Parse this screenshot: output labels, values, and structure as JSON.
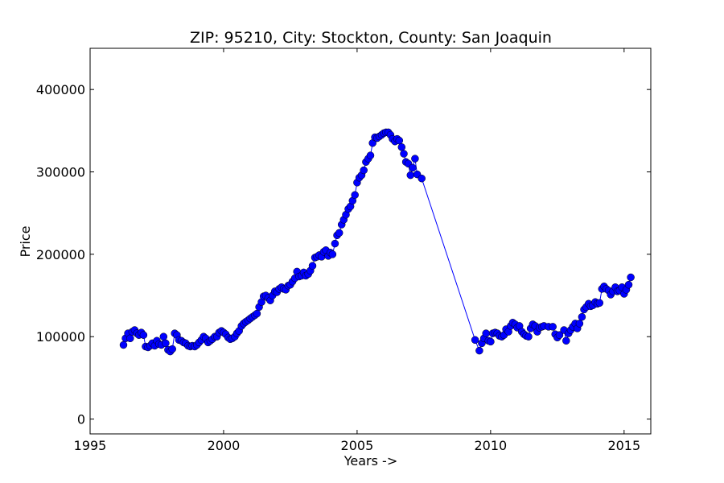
{
  "chart_data": {
    "type": "line",
    "title": "ZIP: 95210, City: Stockton, County: San Joaquin",
    "xlabel": "Years ->",
    "ylabel": "Price",
    "xlim": [
      1995,
      2016
    ],
    "ylim": [
      -18000,
      450000
    ],
    "xticks": [
      1995,
      2000,
      2005,
      2010,
      2015
    ],
    "yticks": [
      0,
      100000,
      200000,
      300000,
      400000
    ],
    "grid": false,
    "legend": "none",
    "colors": {
      "series": "#0000ff",
      "frame": "#000000"
    },
    "series": [
      {
        "marker": "circle",
        "points": [
          [
            1996.25,
            90000
          ],
          [
            1996.33,
            98000
          ],
          [
            1996.42,
            104000
          ],
          [
            1996.5,
            98000
          ],
          [
            1996.58,
            106000
          ],
          [
            1996.67,
            108000
          ],
          [
            1996.75,
            104000
          ],
          [
            1996.83,
            102000
          ],
          [
            1996.92,
            105000
          ],
          [
            1997.0,
            102000
          ],
          [
            1997.08,
            88000
          ],
          [
            1997.17,
            87000
          ],
          [
            1997.25,
            89000
          ],
          [
            1997.33,
            92000
          ],
          [
            1997.42,
            89000
          ],
          [
            1997.5,
            95000
          ],
          [
            1997.58,
            91000
          ],
          [
            1997.67,
            90000
          ],
          [
            1997.75,
            100000
          ],
          [
            1997.83,
            92000
          ],
          [
            1997.92,
            84000
          ],
          [
            1998.0,
            82000
          ],
          [
            1998.08,
            85000
          ],
          [
            1998.17,
            104000
          ],
          [
            1998.25,
            102000
          ],
          [
            1998.33,
            96000
          ],
          [
            1998.42,
            95000
          ],
          [
            1998.5,
            93000
          ],
          [
            1998.58,
            92000
          ],
          [
            1998.67,
            89000
          ],
          [
            1998.75,
            88000
          ],
          [
            1998.83,
            89000
          ],
          [
            1998.92,
            88000
          ],
          [
            1999.0,
            90000
          ],
          [
            1999.08,
            93000
          ],
          [
            1999.17,
            96000
          ],
          [
            1999.25,
            100000
          ],
          [
            1999.33,
            98000
          ],
          [
            1999.42,
            93000
          ],
          [
            1999.5,
            95000
          ],
          [
            1999.58,
            97000
          ],
          [
            1999.67,
            100000
          ],
          [
            1999.75,
            100000
          ],
          [
            1999.83,
            105000
          ],
          [
            1999.92,
            107000
          ],
          [
            2000.0,
            105000
          ],
          [
            2000.08,
            103000
          ],
          [
            2000.17,
            99000
          ],
          [
            2000.25,
            97000
          ],
          [
            2000.33,
            98000
          ],
          [
            2000.42,
            100000
          ],
          [
            2000.5,
            104000
          ],
          [
            2000.58,
            107000
          ],
          [
            2000.67,
            113000
          ],
          [
            2000.75,
            116000
          ],
          [
            2000.83,
            118000
          ],
          [
            2000.92,
            120000
          ],
          [
            2001.0,
            122000
          ],
          [
            2001.08,
            124000
          ],
          [
            2001.17,
            126000
          ],
          [
            2001.25,
            128000
          ],
          [
            2001.33,
            136000
          ],
          [
            2001.42,
            142000
          ],
          [
            2001.5,
            149000
          ],
          [
            2001.58,
            150000
          ],
          [
            2001.67,
            147000
          ],
          [
            2001.75,
            144000
          ],
          [
            2001.83,
            150000
          ],
          [
            2001.92,
            155000
          ],
          [
            2002.0,
            154000
          ],
          [
            2002.08,
            158000
          ],
          [
            2002.17,
            160000
          ],
          [
            2002.25,
            158000
          ],
          [
            2002.33,
            157000
          ],
          [
            2002.42,
            162000
          ],
          [
            2002.5,
            163000
          ],
          [
            2002.58,
            167000
          ],
          [
            2002.67,
            171000
          ],
          [
            2002.75,
            179000
          ],
          [
            2002.83,
            173000
          ],
          [
            2002.92,
            174000
          ],
          [
            2003.0,
            178000
          ],
          [
            2003.08,
            174000
          ],
          [
            2003.17,
            176000
          ],
          [
            2003.25,
            180000
          ],
          [
            2003.33,
            186000
          ],
          [
            2003.42,
            196000
          ],
          [
            2003.5,
            197000
          ],
          [
            2003.58,
            199000
          ],
          [
            2003.67,
            197000
          ],
          [
            2003.75,
            203000
          ],
          [
            2003.83,
            205000
          ],
          [
            2003.92,
            198000
          ],
          [
            2004.0,
            202000
          ],
          [
            2004.08,
            200000
          ],
          [
            2004.17,
            213000
          ],
          [
            2004.25,
            223000
          ],
          [
            2004.33,
            226000
          ],
          [
            2004.42,
            236000
          ],
          [
            2004.5,
            242000
          ],
          [
            2004.58,
            248000
          ],
          [
            2004.67,
            255000
          ],
          [
            2004.75,
            258000
          ],
          [
            2004.83,
            265000
          ],
          [
            2004.92,
            272000
          ],
          [
            2005.0,
            287000
          ],
          [
            2005.08,
            293000
          ],
          [
            2005.17,
            296000
          ],
          [
            2005.25,
            302000
          ],
          [
            2005.33,
            312000
          ],
          [
            2005.42,
            316000
          ],
          [
            2005.5,
            320000
          ],
          [
            2005.58,
            335000
          ],
          [
            2005.67,
            342000
          ],
          [
            2005.75,
            341000
          ],
          [
            2005.83,
            343000
          ],
          [
            2005.92,
            345000
          ],
          [
            2006.0,
            347000
          ],
          [
            2006.08,
            348000
          ],
          [
            2006.17,
            348000
          ],
          [
            2006.25,
            345000
          ],
          [
            2006.33,
            340000
          ],
          [
            2006.42,
            337000
          ],
          [
            2006.5,
            340000
          ],
          [
            2006.58,
            338000
          ],
          [
            2006.67,
            330000
          ],
          [
            2006.75,
            322000
          ],
          [
            2006.83,
            312000
          ],
          [
            2006.92,
            310000
          ],
          [
            2007.0,
            296000
          ],
          [
            2007.08,
            305000
          ],
          [
            2007.17,
            316000
          ],
          [
            2007.25,
            297000
          ],
          [
            2007.42,
            292000
          ],
          [
            2009.42,
            96000
          ],
          [
            2009.58,
            83000
          ],
          [
            2009.67,
            92000
          ],
          [
            2009.75,
            98000
          ],
          [
            2009.83,
            104000
          ],
          [
            2009.92,
            95000
          ],
          [
            2010.0,
            94000
          ],
          [
            2010.08,
            104000
          ],
          [
            2010.17,
            105000
          ],
          [
            2010.25,
            104000
          ],
          [
            2010.33,
            101000
          ],
          [
            2010.42,
            100000
          ],
          [
            2010.5,
            102000
          ],
          [
            2010.58,
            109000
          ],
          [
            2010.67,
            106000
          ],
          [
            2010.75,
            113000
          ],
          [
            2010.83,
            117000
          ],
          [
            2010.92,
            115000
          ],
          [
            2011.0,
            111000
          ],
          [
            2011.08,
            113000
          ],
          [
            2011.17,
            106000
          ],
          [
            2011.25,
            103000
          ],
          [
            2011.33,
            101000
          ],
          [
            2011.42,
            100000
          ],
          [
            2011.5,
            110000
          ],
          [
            2011.58,
            115000
          ],
          [
            2011.67,
            113000
          ],
          [
            2011.75,
            106000
          ],
          [
            2011.83,
            111000
          ],
          [
            2011.92,
            112000
          ],
          [
            2012.0,
            113000
          ],
          [
            2012.17,
            112000
          ],
          [
            2012.33,
            112000
          ],
          [
            2012.42,
            103000
          ],
          [
            2012.5,
            99000
          ],
          [
            2012.58,
            102000
          ],
          [
            2012.75,
            108000
          ],
          [
            2012.83,
            95000
          ],
          [
            2012.92,
            104000
          ],
          [
            2013.0,
            108000
          ],
          [
            2013.08,
            112000
          ],
          [
            2013.17,
            116000
          ],
          [
            2013.25,
            110000
          ],
          [
            2013.33,
            116000
          ],
          [
            2013.42,
            124000
          ],
          [
            2013.5,
            133000
          ],
          [
            2013.58,
            136000
          ],
          [
            2013.67,
            140000
          ],
          [
            2013.75,
            137000
          ],
          [
            2013.83,
            138000
          ],
          [
            2013.92,
            142000
          ],
          [
            2014.0,
            140000
          ],
          [
            2014.08,
            141000
          ],
          [
            2014.17,
            158000
          ],
          [
            2014.25,
            161000
          ],
          [
            2014.33,
            158000
          ],
          [
            2014.42,
            156000
          ],
          [
            2014.5,
            151000
          ],
          [
            2014.58,
            155000
          ],
          [
            2014.67,
            160000
          ],
          [
            2014.75,
            155000
          ],
          [
            2014.83,
            156000
          ],
          [
            2014.92,
            160000
          ],
          [
            2015.0,
            152000
          ],
          [
            2015.08,
            157000
          ],
          [
            2015.17,
            163000
          ],
          [
            2015.25,
            172000
          ]
        ]
      }
    ]
  }
}
